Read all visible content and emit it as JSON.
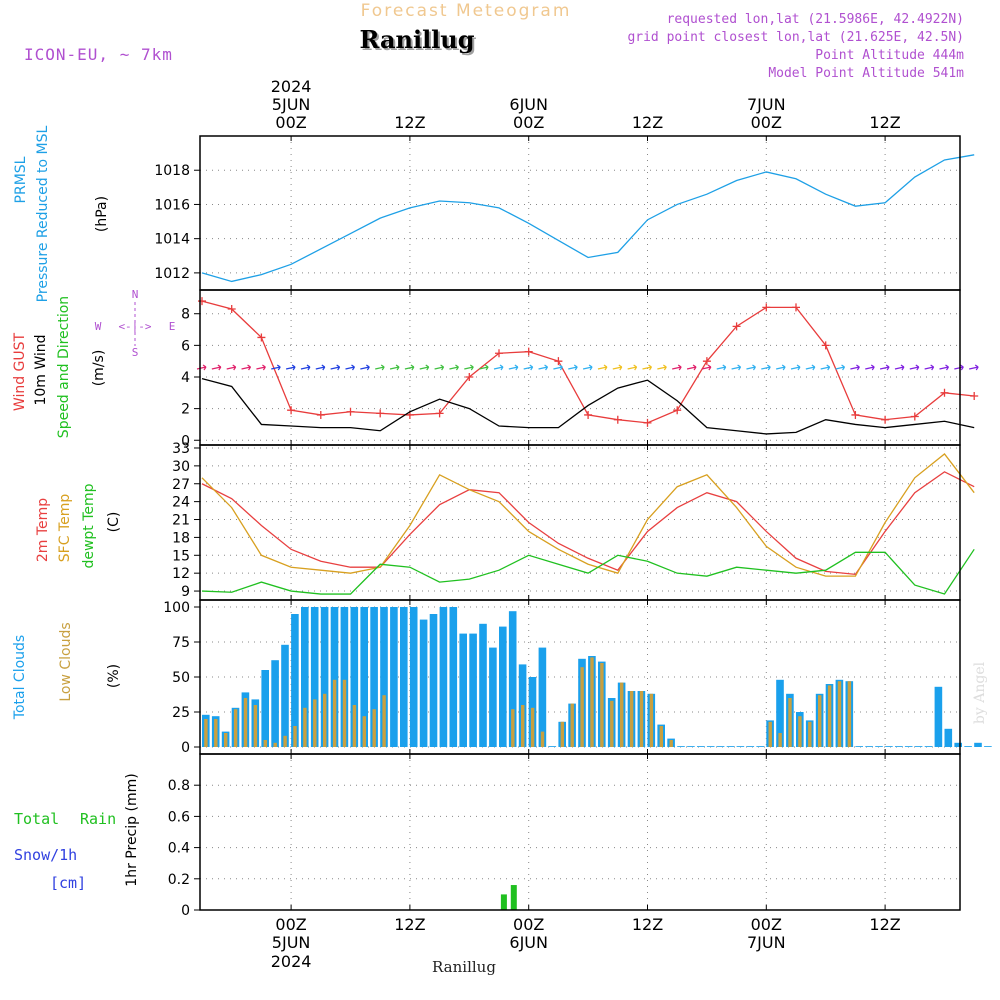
{
  "header": {
    "suptitle": "Forecast Meteogram",
    "location": "Ranillug",
    "model": "ICON-EU, ~ 7km",
    "requested": "requested lon,lat (21.5986E, 42.4922N)",
    "gridpoint": "grid point closest lon,lat (21.625E, 42.5N)",
    "point_alt": "Point Altitude 444m",
    "model_alt": "Model Point Altitude 541m",
    "footer_location": "Ranillug",
    "watermark": "by Angel"
  },
  "time_axis": {
    "ticks": [
      "00Z",
      "12Z",
      "00Z",
      "12Z",
      "00Z",
      "12Z"
    ],
    "top_dates": [
      {
        "tick": 0,
        "lines": [
          "2024",
          "5JUN"
        ]
      },
      {
        "tick": 2,
        "lines": [
          "6JUN"
        ]
      },
      {
        "tick": 4,
        "lines": [
          "7JUN"
        ]
      }
    ],
    "bottom_dates": [
      {
        "tick": 0,
        "lines": [
          "5JUN",
          "2024"
        ]
      },
      {
        "tick": 2,
        "lines": [
          "6JUN"
        ]
      },
      {
        "tick": 4,
        "lines": [
          "7JUN"
        ]
      }
    ]
  },
  "colors": {
    "pressure": "#1ea0e6",
    "gust": "#e83c3c",
    "wind": "#000000",
    "temp2m": "#e84040",
    "sfc": "#d8a020",
    "dew": "#20c020",
    "totalcloud": "#1aa0ec",
    "lowcloud": "#c8a040",
    "rain": "#20c020",
    "snow": "#3040e0",
    "purple": "#b050d0",
    "suptitle": "#f0c890"
  },
  "panels": {
    "pressure": {
      "labels": [
        "PRMSL",
        "Pressure Reduced to MSL"
      ],
      "unit": "(hPa)"
    },
    "wind": {
      "labels": [
        "Wind GUST",
        "10m Wind",
        "Speed and Direction"
      ],
      "unit": "(m/s)",
      "compass": {
        "n": "N",
        "s": "S",
        "w": "W",
        "e": "E",
        "arrows": "<-|->"
      }
    },
    "temp": {
      "labels": [
        "2m Temp",
        "SFC Temp",
        "dewpt Temp"
      ],
      "unit": "(C)"
    },
    "cloud": {
      "labels": [
        "Total Clouds",
        "Low Clouds"
      ],
      "unit": "(%)"
    },
    "precip": {
      "labels": [
        "Total",
        "Rain",
        "Snow/1h",
        "[cm]"
      ],
      "ylabel": "1hr Precip (mm)"
    }
  },
  "chart_data": [
    {
      "type": "line",
      "title": "PRMSL Pressure Reduced to MSL",
      "ylabel": "(hPa)",
      "ylim": [
        1011,
        1020
      ],
      "yticks": [
        1012,
        1014,
        1016,
        1018
      ],
      "x_hours": [
        0,
        3,
        6,
        9,
        12,
        15,
        18,
        21,
        24,
        27,
        30,
        33,
        36,
        39,
        42,
        45,
        48,
        51,
        54,
        57,
        60,
        63,
        66,
        69,
        72,
        75,
        78
      ],
      "series": [
        {
          "name": "PRMSL",
          "values": [
            1012.0,
            1011.5,
            1011.9,
            1012.5,
            1013.4,
            1014.3,
            1015.2,
            1015.8,
            1016.2,
            1016.1,
            1015.8,
            1014.9,
            1013.9,
            1012.9,
            1013.2,
            1015.1,
            1016.0,
            1016.6,
            1017.4,
            1017.9,
            1017.5,
            1016.6,
            1015.9,
            1016.1,
            1017.6,
            1018.6,
            1018.9
          ]
        }
      ]
    },
    {
      "type": "line",
      "title": "Wind GUST / 10m Wind Speed and Direction",
      "ylabel": "(m/s)",
      "ylim": [
        -0.3,
        9.5
      ],
      "yticks": [
        0,
        2,
        4,
        6,
        8
      ],
      "x_hours": [
        0,
        3,
        6,
        9,
        12,
        15,
        18,
        21,
        24,
        27,
        30,
        33,
        36,
        39,
        42,
        45,
        48,
        51,
        54,
        57,
        60,
        63,
        66,
        69,
        72,
        75,
        78
      ],
      "series": [
        {
          "name": "Wind GUST",
          "values": [
            8.8,
            8.3,
            6.5,
            1.9,
            1.6,
            1.8,
            1.7,
            1.6,
            1.7,
            4.0,
            5.5,
            5.6,
            5.0,
            1.6,
            1.3,
            1.1,
            1.9,
            5.0,
            7.2,
            8.4,
            8.4,
            6.0,
            1.6,
            1.3,
            1.5,
            3.0,
            2.8
          ]
        },
        {
          "name": "10m Wind",
          "values": [
            3.9,
            3.4,
            1.0,
            0.9,
            0.8,
            0.8,
            0.6,
            1.8,
            2.6,
            2.0,
            0.9,
            0.8,
            0.8,
            2.2,
            3.3,
            3.8,
            2.5,
            0.8,
            0.6,
            0.4,
            0.5,
            1.3,
            1.0,
            0.8,
            1.0,
            1.2,
            0.8
          ]
        }
      ]
    },
    {
      "type": "line",
      "title": "2m Temp / SFC Temp / dewpt Temp",
      "ylabel": "(C)",
      "ylim": [
        7.5,
        33.5
      ],
      "yticks": [
        9,
        12,
        15,
        18,
        21,
        24,
        27,
        30,
        33
      ],
      "x_hours": [
        0,
        3,
        6,
        9,
        12,
        15,
        18,
        21,
        24,
        27,
        30,
        33,
        36,
        39,
        42,
        45,
        48,
        51,
        54,
        57,
        60,
        63,
        66,
        69,
        72,
        75,
        78
      ],
      "series": [
        {
          "name": "2m Temp",
          "values": [
            27.0,
            24.5,
            20.0,
            16.0,
            14.0,
            13.0,
            13.0,
            18.5,
            23.5,
            26.0,
            25.5,
            20.5,
            17.0,
            14.5,
            12.5,
            19.0,
            23.0,
            25.5,
            24.0,
            19.0,
            14.5,
            12.3,
            11.8,
            19.0,
            25.5,
            29.0,
            26.5
          ]
        },
        {
          "name": "SFC Temp",
          "values": [
            28.0,
            23.0,
            15.0,
            13.0,
            12.5,
            12.0,
            13.0,
            20.0,
            28.5,
            26.0,
            24.0,
            19.0,
            16.0,
            13.5,
            12.0,
            21.0,
            26.5,
            28.5,
            23.0,
            16.5,
            13.0,
            11.5,
            11.5,
            20.5,
            28.0,
            32.0,
            25.5
          ]
        },
        {
          "name": "dewpt Temp",
          "values": [
            9.0,
            8.8,
            10.5,
            9.0,
            8.5,
            8.5,
            13.5,
            13.0,
            10.5,
            11.0,
            12.5,
            15.0,
            13.5,
            12.0,
            15.0,
            14.0,
            12.0,
            11.5,
            13.0,
            12.5,
            12.0,
            12.5,
            15.5,
            15.5,
            10.0,
            8.5,
            16.0
          ]
        }
      ]
    },
    {
      "type": "bar",
      "title": "Total Clouds / Low Clouds",
      "ylabel": "(%)",
      "ylim": [
        -5,
        105
      ],
      "yticks": [
        0,
        25,
        50,
        75,
        100
      ],
      "hours_per_bar": 1,
      "series": [
        {
          "name": "Total Clouds",
          "values": [
            23,
            22,
            11,
            28,
            39,
            34,
            55,
            62,
            73,
            95,
            100,
            100,
            100,
            100,
            100,
            100,
            100,
            100,
            100,
            100,
            100,
            100,
            91,
            95,
            100,
            100,
            81,
            81,
            88,
            71,
            86,
            97,
            59,
            50,
            71,
            0,
            18,
            31,
            63,
            65,
            61,
            35,
            46,
            40,
            40,
            38,
            16,
            6,
            0,
            0,
            0,
            0,
            0,
            0,
            0,
            0,
            0,
            19,
            48,
            38,
            25,
            19,
            38,
            45,
            48,
            47,
            0,
            0,
            0,
            0,
            0,
            0,
            0,
            0,
            43,
            13,
            3,
            0,
            3,
            0
          ]
        },
        {
          "name": "Low Clouds",
          "values": [
            20,
            20,
            10,
            27,
            35,
            30,
            5,
            3,
            8,
            15,
            28,
            34,
            38,
            48,
            48,
            30,
            22,
            27,
            37,
            0,
            0,
            0,
            0,
            0,
            0,
            0,
            0,
            0,
            0,
            0,
            0,
            27,
            30,
            28,
            11,
            0,
            18,
            31,
            57,
            64,
            60,
            33,
            46,
            40,
            40,
            38,
            15,
            5,
            0,
            0,
            0,
            0,
            0,
            0,
            0,
            0,
            0,
            18,
            10,
            35,
            22,
            18,
            37,
            44,
            47,
            47,
            0,
            0,
            0,
            0,
            0,
            0,
            0,
            0,
            0,
            0,
            0,
            0,
            0,
            0
          ]
        }
      ]
    },
    {
      "type": "bar",
      "title": "1hr Precip",
      "ylabel": "1hr Precip (mm)",
      "ylim": [
        0,
        1.0
      ],
      "yticks": [
        0,
        0.2,
        0.4,
        0.6,
        0.8
      ],
      "ytick_labels": [
        "0",
        "0.2",
        "0.4",
        "0.6",
        "0.8"
      ],
      "hours_per_bar": 1,
      "series": [
        {
          "name": "Total Rain",
          "values": [
            0,
            0,
            0,
            0,
            0,
            0,
            0,
            0,
            0,
            0,
            0,
            0,
            0,
            0,
            0,
            0,
            0,
            0,
            0,
            0,
            0,
            0,
            0,
            0,
            0,
            0,
            0,
            0,
            0,
            0,
            0,
            0.1,
            0.16,
            0,
            0,
            0,
            0,
            0,
            0,
            0,
            0,
            0,
            0,
            0,
            0,
            0,
            0,
            0,
            0,
            0,
            0,
            0,
            0,
            0,
            0,
            0,
            0,
            0,
            0,
            0,
            0,
            0,
            0,
            0,
            0,
            0,
            0,
            0,
            0,
            0,
            0,
            0,
            0,
            0,
            0,
            0,
            0,
            0,
            0,
            0
          ]
        }
      ]
    }
  ]
}
